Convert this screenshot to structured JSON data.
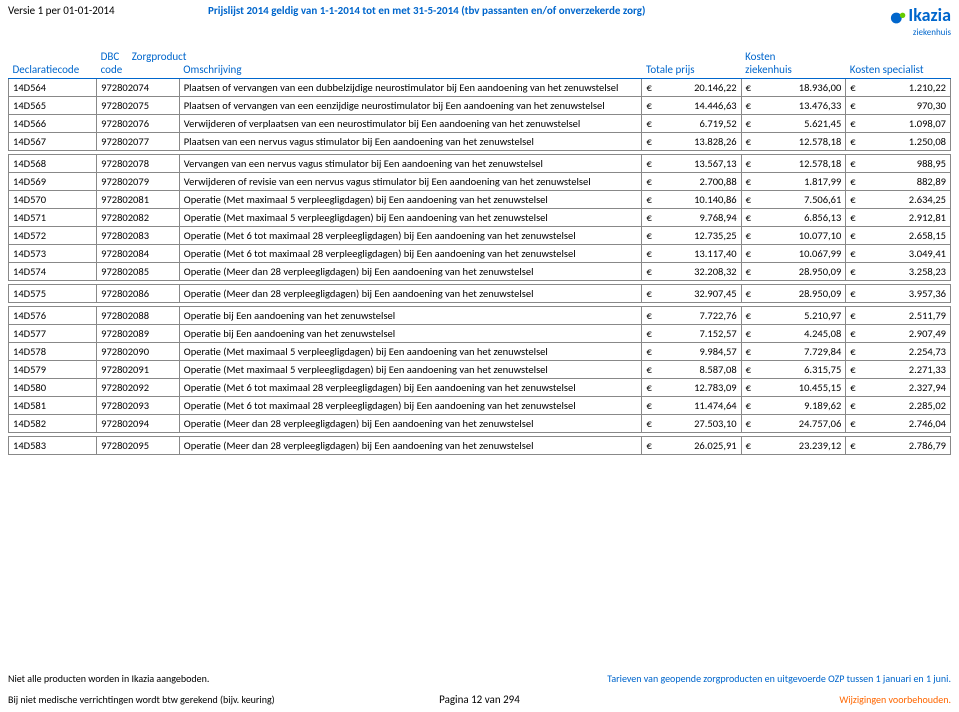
{
  "header": {
    "version": "Versie 1 per 01-01-2014",
    "title": "Prijslijst 2014 geldig van 1-1-2014 tot en met 31-5-2014 (tbv passanten en/of onverzekerde zorg)",
    "logo_name": "Ikazia",
    "logo_sub": "ziekenhuis"
  },
  "columns": {
    "c1": "Declaratiecode",
    "c2a": "DBC",
    "c2b": "code",
    "c2c": "Zorgproduct",
    "c3": "Omschrijving",
    "c4": "Totale prijs",
    "c5a": "Kosten",
    "c5b": "ziekenhuis",
    "c6": "Kosten specialist"
  },
  "rows": [
    {
      "decl": "14D564",
      "dbc": "972802074",
      "desc": "Plaatsen of vervangen van een dubbelzijdige neurostimulator bij Een aandoening van het zenuwstelsel",
      "p1": "20.146,22",
      "p2": "18.936,00",
      "p3": "1.210,22"
    },
    {
      "decl": "14D565",
      "dbc": "972802075",
      "desc": "Plaatsen of vervangen van een eenzijdige neurostimulator bij Een aandoening van het zenuwstelsel",
      "p1": "14.446,63",
      "p2": "13.476,33",
      "p3": "970,30"
    },
    {
      "decl": "14D566",
      "dbc": "972802076",
      "desc": "Verwijderen of verplaatsen van een neurostimulator bij Een aandoening van het zenuwstelsel",
      "p1": "6.719,52",
      "p2": "5.621,45",
      "p3": "1.098,07"
    },
    {
      "decl": "14D567",
      "dbc": "972802077",
      "desc": "Plaatsen van een nervus vagus stimulator bij Een aandoening van het zenuwstelsel",
      "p1": "13.828,26",
      "p2": "12.578,18",
      "p3": "1.250,08"
    },
    {
      "gap": true
    },
    {
      "decl": "14D568",
      "dbc": "972802078",
      "desc": "Vervangen van een nervus vagus stimulator bij Een aandoening van het zenuwstelsel",
      "p1": "13.567,13",
      "p2": "12.578,18",
      "p3": "988,95"
    },
    {
      "decl": "14D569",
      "dbc": "972802079",
      "desc": "Verwijderen of revisie van een nervus vagus stimulator bij Een aandoening van het zenuwstelsel",
      "p1": "2.700,88",
      "p2": "1.817,99",
      "p3": "882,89"
    },
    {
      "decl": "14D570",
      "dbc": "972802081",
      "desc": "Operatie (Met maximaal 5 verpleegligdagen) bij Een aandoening van het zenuwstelsel",
      "p1": "10.140,86",
      "p2": "7.506,61",
      "p3": "2.634,25"
    },
    {
      "decl": "14D571",
      "dbc": "972802082",
      "desc": "Operatie (Met maximaal 5 verpleegligdagen) bij Een aandoening van het zenuwstelsel",
      "p1": "9.768,94",
      "p2": "6.856,13",
      "p3": "2.912,81"
    },
    {
      "decl": "14D572",
      "dbc": "972802083",
      "desc": "Operatie (Met 6 tot maximaal 28 verpleegligdagen) bij Een aandoening van het zenuwstelsel",
      "p1": "12.735,25",
      "p2": "10.077,10",
      "p3": "2.658,15"
    },
    {
      "decl": "14D573",
      "dbc": "972802084",
      "desc": "Operatie (Met 6 tot maximaal 28 verpleegligdagen) bij Een aandoening van het zenuwstelsel",
      "p1": "13.117,40",
      "p2": "10.067,99",
      "p3": "3.049,41"
    },
    {
      "decl": "14D574",
      "dbc": "972802085",
      "desc": "Operatie (Meer dan 28 verpleegligdagen) bij Een aandoening van het zenuwstelsel",
      "p1": "32.208,32",
      "p2": "28.950,09",
      "p3": "3.258,23"
    },
    {
      "gap": true
    },
    {
      "decl": "14D575",
      "dbc": "972802086",
      "desc": "Operatie (Meer dan 28 verpleegligdagen) bij Een aandoening van het zenuwstelsel",
      "p1": "32.907,45",
      "p2": "28.950,09",
      "p3": "3.957,36"
    },
    {
      "gap": true
    },
    {
      "decl": "14D576",
      "dbc": "972802088",
      "desc": "Operatie bij Een aandoening van het zenuwstelsel",
      "p1": "7.722,76",
      "p2": "5.210,97",
      "p3": "2.511,79"
    },
    {
      "decl": "14D577",
      "dbc": "972802089",
      "desc": "Operatie bij Een aandoening van het zenuwstelsel",
      "p1": "7.152,57",
      "p2": "4.245,08",
      "p3": "2.907,49"
    },
    {
      "decl": "14D578",
      "dbc": "972802090",
      "desc": "Operatie (Met maximaal 5 verpleegligdagen) bij Een aandoening van het zenuwstelsel",
      "p1": "9.984,57",
      "p2": "7.729,84",
      "p3": "2.254,73"
    },
    {
      "decl": "14D579",
      "dbc": "972802091",
      "desc": "Operatie (Met maximaal 5 verpleegligdagen) bij Een aandoening van het zenuwstelsel",
      "p1": "8.587,08",
      "p2": "6.315,75",
      "p3": "2.271,33"
    },
    {
      "decl": "14D580",
      "dbc": "972802092",
      "desc": "Operatie (Met 6 tot maximaal 28 verpleegligdagen) bij Een aandoening van het zenuwstelsel",
      "p1": "12.783,09",
      "p2": "10.455,15",
      "p3": "2.327,94"
    },
    {
      "decl": "14D581",
      "dbc": "972802093",
      "desc": "Operatie (Met 6 tot maximaal 28 verpleegligdagen) bij Een aandoening van het zenuwstelsel",
      "p1": "11.474,64",
      "p2": "9.189,62",
      "p3": "2.285,02"
    },
    {
      "decl": "14D582",
      "dbc": "972802094",
      "desc": "Operatie (Meer dan 28 verpleegligdagen) bij Een aandoening van het zenuwstelsel",
      "p1": "27.503,10",
      "p2": "24.757,06",
      "p3": "2.746,04"
    },
    {
      "gap": true
    },
    {
      "decl": "14D583",
      "dbc": "972802095",
      "desc": "Operatie (Meer dan 28 verpleegligdagen) bij Een aandoening van het zenuwstelsel",
      "p1": "26.025,91",
      "p2": "23.239,12",
      "p3": "2.786,79"
    }
  ],
  "currency": "€",
  "footer": {
    "left1": "Niet alle producten worden in Ikazia aangeboden.",
    "right1": "Tarieven van geopende zorgproducten en uitgevoerde OZP tussen 1 januari en 1 juni.",
    "left2": "Bij niet medische verrichtingen wordt btw gerekend (bijv. keuring)",
    "page": "Pagina 12 van 294",
    "right2": "Wijzigingen voorbehouden."
  },
  "style": {
    "header_color": "#0066cc",
    "accent_color": "#ff6600",
    "border_color": "#888888",
    "font_family": "Calibri, Arial, sans-serif",
    "body_font_size": 11,
    "cell_font_size": 10.5
  }
}
